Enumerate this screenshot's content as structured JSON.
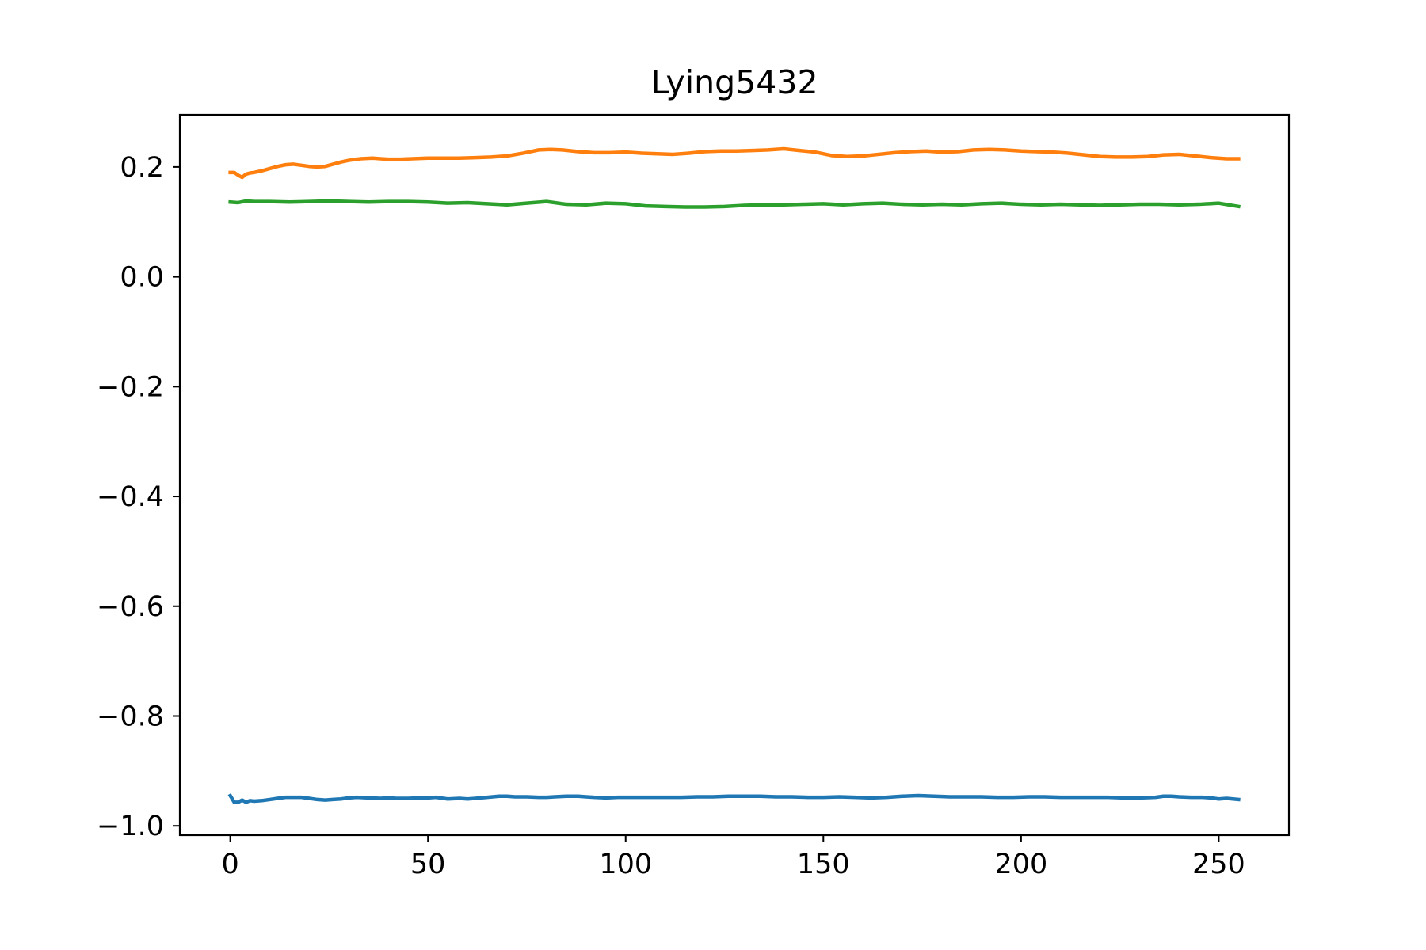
{
  "chart_data": {
    "type": "line",
    "title": "Lying5432",
    "xlabel": "",
    "ylabel": "",
    "xlim": [
      -12.75,
      267.75
    ],
    "ylim": [
      -1.017,
      0.295
    ],
    "xticks": [
      0,
      50,
      100,
      150,
      200,
      250
    ],
    "yticks": [
      0.2,
      0.0,
      -0.2,
      -0.4,
      -0.6,
      -0.8,
      -1.0
    ],
    "xtick_labels": [
      "0",
      "50",
      "100",
      "150",
      "200",
      "250"
    ],
    "ytick_labels": [
      "0.2",
      "0.0",
      "−0.2",
      "−0.4",
      "−0.6",
      "−0.8",
      "−1.0"
    ],
    "grid": false,
    "legend": "none",
    "series": [
      {
        "color": "#1f77b4",
        "x": [
          0,
          1,
          2,
          3,
          4,
          5,
          6,
          8,
          10,
          12,
          14,
          16,
          18,
          20,
          22,
          24,
          26,
          28,
          30,
          32,
          35,
          38,
          40,
          42,
          45,
          48,
          50,
          52,
          55,
          58,
          60,
          62,
          65,
          68,
          70,
          72,
          75,
          78,
          80,
          82,
          85,
          88,
          90,
          92,
          95,
          98,
          100,
          103,
          106,
          110,
          114,
          118,
          122,
          126,
          130,
          134,
          138,
          142,
          146,
          150,
          154,
          158,
          162,
          166,
          170,
          174,
          178,
          182,
          186,
          190,
          194,
          198,
          202,
          206,
          210,
          214,
          218,
          222,
          226,
          230,
          234,
          236,
          238,
          240,
          243,
          246,
          248,
          250,
          252,
          255
        ],
        "y": [
          -0.945,
          -0.957,
          -0.957,
          -0.953,
          -0.957,
          -0.954,
          -0.955,
          -0.954,
          -0.952,
          -0.95,
          -0.948,
          -0.948,
          -0.948,
          -0.95,
          -0.952,
          -0.953,
          -0.952,
          -0.951,
          -0.949,
          -0.948,
          -0.949,
          -0.95,
          -0.949,
          -0.95,
          -0.95,
          -0.949,
          -0.949,
          -0.948,
          -0.951,
          -0.95,
          -0.951,
          -0.95,
          -0.948,
          -0.946,
          -0.946,
          -0.947,
          -0.947,
          -0.948,
          -0.948,
          -0.947,
          -0.946,
          -0.946,
          -0.947,
          -0.948,
          -0.949,
          -0.948,
          -0.948,
          -0.948,
          -0.948,
          -0.948,
          -0.948,
          -0.947,
          -0.947,
          -0.946,
          -0.946,
          -0.946,
          -0.947,
          -0.947,
          -0.948,
          -0.948,
          -0.947,
          -0.948,
          -0.949,
          -0.948,
          -0.946,
          -0.945,
          -0.946,
          -0.947,
          -0.947,
          -0.947,
          -0.948,
          -0.948,
          -0.947,
          -0.947,
          -0.948,
          -0.948,
          -0.948,
          -0.948,
          -0.949,
          -0.949,
          -0.948,
          -0.946,
          -0.946,
          -0.947,
          -0.948,
          -0.948,
          -0.949,
          -0.951,
          -0.95,
          -0.952
        ]
      },
      {
        "color": "#ff7f0e",
        "x": [
          0,
          1,
          2,
          3,
          4,
          5,
          6,
          8,
          10,
          12,
          14,
          16,
          18,
          20,
          22,
          24,
          26,
          28,
          30,
          33,
          36,
          38,
          40,
          43,
          46,
          50,
          54,
          58,
          62,
          66,
          70,
          74,
          78,
          81,
          84,
          88,
          92,
          96,
          100,
          104,
          108,
          112,
          116,
          120,
          124,
          128,
          132,
          136,
          140,
          144,
          148,
          152,
          156,
          160,
          164,
          168,
          172,
          176,
          180,
          184,
          188,
          192,
          196,
          200,
          204,
          208,
          212,
          216,
          220,
          224,
          228,
          232,
          236,
          240,
          244,
          248,
          252,
          255
        ],
        "y": [
          0.19,
          0.19,
          0.185,
          0.181,
          0.187,
          0.189,
          0.19,
          0.193,
          0.197,
          0.201,
          0.204,
          0.205,
          0.203,
          0.201,
          0.2,
          0.201,
          0.205,
          0.209,
          0.212,
          0.215,
          0.216,
          0.215,
          0.214,
          0.214,
          0.215,
          0.216,
          0.216,
          0.216,
          0.217,
          0.218,
          0.22,
          0.225,
          0.231,
          0.232,
          0.231,
          0.228,
          0.226,
          0.226,
          0.227,
          0.225,
          0.224,
          0.223,
          0.225,
          0.228,
          0.229,
          0.229,
          0.23,
          0.231,
          0.233,
          0.23,
          0.227,
          0.221,
          0.219,
          0.22,
          0.223,
          0.226,
          0.228,
          0.229,
          0.227,
          0.228,
          0.231,
          0.232,
          0.231,
          0.229,
          0.228,
          0.227,
          0.225,
          0.222,
          0.219,
          0.218,
          0.218,
          0.219,
          0.222,
          0.223,
          0.22,
          0.217,
          0.215,
          0.215
        ]
      },
      {
        "color": "#2ca02c",
        "x": [
          0,
          2,
          4,
          6,
          10,
          15,
          20,
          25,
          30,
          35,
          40,
          45,
          50,
          55,
          60,
          65,
          70,
          75,
          80,
          85,
          90,
          95,
          100,
          105,
          110,
          115,
          120,
          125,
          130,
          135,
          140,
          145,
          150,
          155,
          160,
          165,
          170,
          175,
          180,
          185,
          190,
          195,
          200,
          205,
          210,
          215,
          220,
          225,
          230,
          235,
          240,
          245,
          250,
          255
        ],
        "y": [
          0.136,
          0.135,
          0.138,
          0.137,
          0.137,
          0.136,
          0.137,
          0.138,
          0.137,
          0.136,
          0.137,
          0.137,
          0.136,
          0.134,
          0.135,
          0.133,
          0.131,
          0.134,
          0.137,
          0.132,
          0.131,
          0.134,
          0.133,
          0.129,
          0.128,
          0.127,
          0.127,
          0.128,
          0.13,
          0.131,
          0.131,
          0.132,
          0.133,
          0.131,
          0.133,
          0.134,
          0.132,
          0.131,
          0.132,
          0.131,
          0.133,
          0.134,
          0.132,
          0.131,
          0.132,
          0.131,
          0.13,
          0.131,
          0.132,
          0.132,
          0.131,
          0.132,
          0.134,
          0.128
        ]
      }
    ]
  }
}
